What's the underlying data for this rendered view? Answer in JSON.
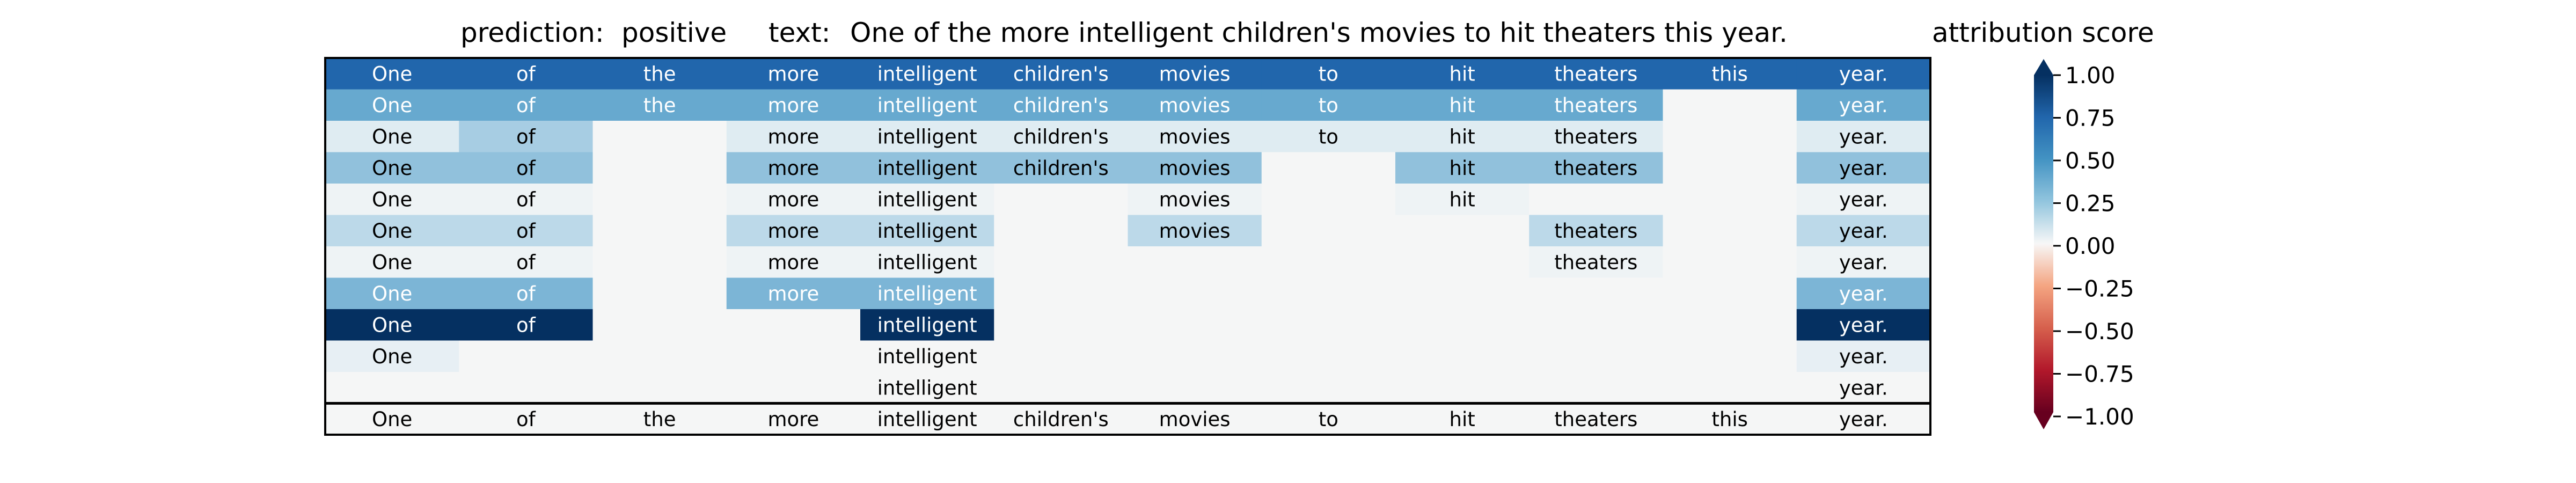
{
  "header": {
    "prediction_label": "prediction:",
    "prediction_value": "positive",
    "text_label": "text:",
    "text_value": "One of the more intelligent children's movies to hit theaters this year."
  },
  "colorbar": {
    "title": "attribution score",
    "ticks": [
      "1.00",
      "0.75",
      "0.50",
      "0.25",
      "0.00",
      "−0.25",
      "−0.50",
      "−0.75",
      "−1.00"
    ],
    "range": [
      -1,
      1
    ],
    "colormap": "RdBu",
    "extend": "both"
  },
  "chart_data": {
    "type": "heatmap",
    "title": "",
    "xlabel": "",
    "ylabel": "",
    "tokens": [
      "One",
      "of",
      "the",
      "more",
      "intelligent",
      "children's",
      "movies",
      "to",
      "hit",
      "theaters",
      "this",
      "year."
    ],
    "rows": [
      [
        "One",
        "of",
        "the",
        "more",
        "intelligent",
        "children's",
        "movies",
        "to",
        "hit",
        "theaters",
        "this",
        "year."
      ],
      [
        "One",
        "of",
        "the",
        "more",
        "intelligent",
        "children's",
        "movies",
        "to",
        "hit",
        "theaters",
        "",
        "year."
      ],
      [
        "One",
        "of",
        "",
        "more",
        "intelligent",
        "children's",
        "movies",
        "to",
        "hit",
        "theaters",
        "",
        "year."
      ],
      [
        "One",
        "of",
        "",
        "more",
        "intelligent",
        "children's",
        "movies",
        "",
        "hit",
        "theaters",
        "",
        "year."
      ],
      [
        "One",
        "of",
        "",
        "more",
        "intelligent",
        "",
        "movies",
        "",
        "hit",
        "",
        "",
        "year."
      ],
      [
        "One",
        "of",
        "",
        "more",
        "intelligent",
        "",
        "movies",
        "",
        "",
        "theaters",
        "",
        "year."
      ],
      [
        "One",
        "of",
        "",
        "more",
        "intelligent",
        "",
        "",
        "",
        "",
        "theaters",
        "",
        "year."
      ],
      [
        "One",
        "of",
        "",
        "more",
        "intelligent",
        "",
        "",
        "",
        "",
        "",
        "",
        "year."
      ],
      [
        "One",
        "of",
        "",
        "",
        "intelligent",
        "",
        "",
        "",
        "",
        "",
        "",
        "year."
      ],
      [
        "One",
        "",
        "",
        "",
        "intelligent",
        "",
        "",
        "",
        "",
        "",
        "",
        "year."
      ],
      [
        "",
        "",
        "",
        "",
        "intelligent",
        "",
        "",
        "",
        "",
        "",
        "",
        "year."
      ]
    ],
    "values": [
      [
        0.75,
        0.75,
        0.75,
        0.75,
        0.75,
        0.75,
        0.75,
        0.75,
        0.75,
        0.75,
        0.75,
        0.75
      ],
      [
        0.5,
        0.5,
        0.5,
        0.5,
        0.5,
        0.5,
        0.5,
        0.5,
        0.5,
        0.5,
        0.0,
        0.5
      ],
      [
        0.15,
        0.35,
        0.0,
        0.15,
        0.15,
        0.15,
        0.15,
        0.15,
        0.15,
        0.15,
        0.0,
        0.15
      ],
      [
        0.4,
        0.4,
        0.0,
        0.4,
        0.4,
        0.4,
        0.4,
        0.0,
        0.4,
        0.4,
        0.0,
        0.4
      ],
      [
        0.05,
        0.05,
        0.0,
        0.05,
        0.05,
        0.0,
        0.05,
        0.0,
        0.05,
        0.0,
        0.0,
        0.05
      ],
      [
        0.3,
        0.3,
        0.0,
        0.3,
        0.3,
        0.0,
        0.3,
        0.0,
        0.0,
        0.3,
        0.0,
        0.3
      ],
      [
        0.05,
        0.05,
        0.0,
        0.05,
        0.05,
        0.0,
        0.0,
        0.0,
        0.0,
        0.05,
        0.0,
        0.05
      ],
      [
        0.45,
        0.45,
        0.0,
        0.45,
        0.45,
        0.0,
        0.0,
        0.0,
        0.0,
        0.0,
        0.0,
        0.45
      ],
      [
        1.0,
        1.0,
        0.0,
        0.0,
        1.0,
        0.0,
        0.0,
        0.0,
        0.0,
        0.0,
        0.0,
        1.0
      ],
      [
        0.1,
        0.0,
        0.0,
        0.0,
        0.0,
        0.0,
        0.0,
        0.0,
        0.0,
        0.0,
        0.0,
        0.1
      ],
      [
        0.0,
        0.0,
        0.0,
        0.0,
        0.0,
        0.0,
        0.0,
        0.0,
        0.0,
        0.0,
        0.0,
        0.0
      ]
    ],
    "footer_row": [
      "One",
      "of",
      "the",
      "more",
      "intelligent",
      "children's",
      "movies",
      "to",
      "hit",
      "theaters",
      "this",
      "year."
    ]
  }
}
